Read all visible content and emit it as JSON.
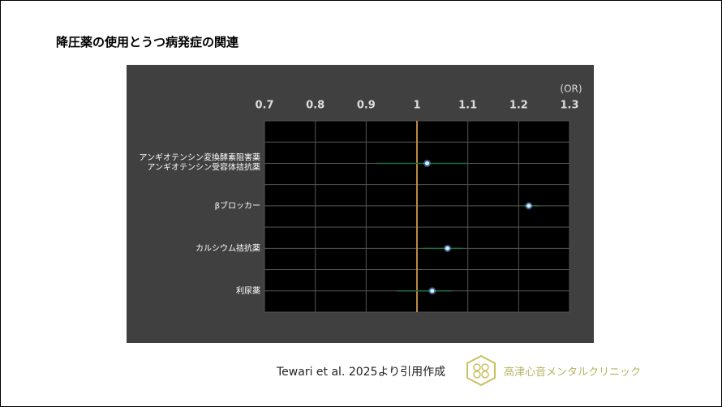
{
  "title": "降圧薬の使用とうつ病発症の関連",
  "source": "Tewari et al. 2025より引用作成",
  "logo_text": "高津心音メンタルクリニック",
  "chart_data": {
    "type": "forest",
    "unit_label": "(OR)",
    "categories": [
      [
        "アンギオテンシン変換酵素阻害薬",
        "アンギオテンシン受容体拮抗薬"
      ],
      "βブロッカー",
      "カルシウム拮抗薬",
      "利尿薬"
    ],
    "values": [
      1.02,
      1.22,
      1.06,
      1.03
    ],
    "ci_low": [
      0.92,
      1.21,
      1.01,
      0.96
    ],
    "ci_high": [
      1.1,
      1.24,
      1.09,
      1.07
    ],
    "reference": 1,
    "xlim": [
      0.7,
      1.3
    ],
    "xticks": [
      0.7,
      0.8,
      0.9,
      1,
      1.1,
      1.2,
      1.3
    ],
    "grid": true,
    "point_color": "#6fb0ff",
    "ci_color": "#1f6b3f",
    "reference_color": "#b98a45"
  }
}
